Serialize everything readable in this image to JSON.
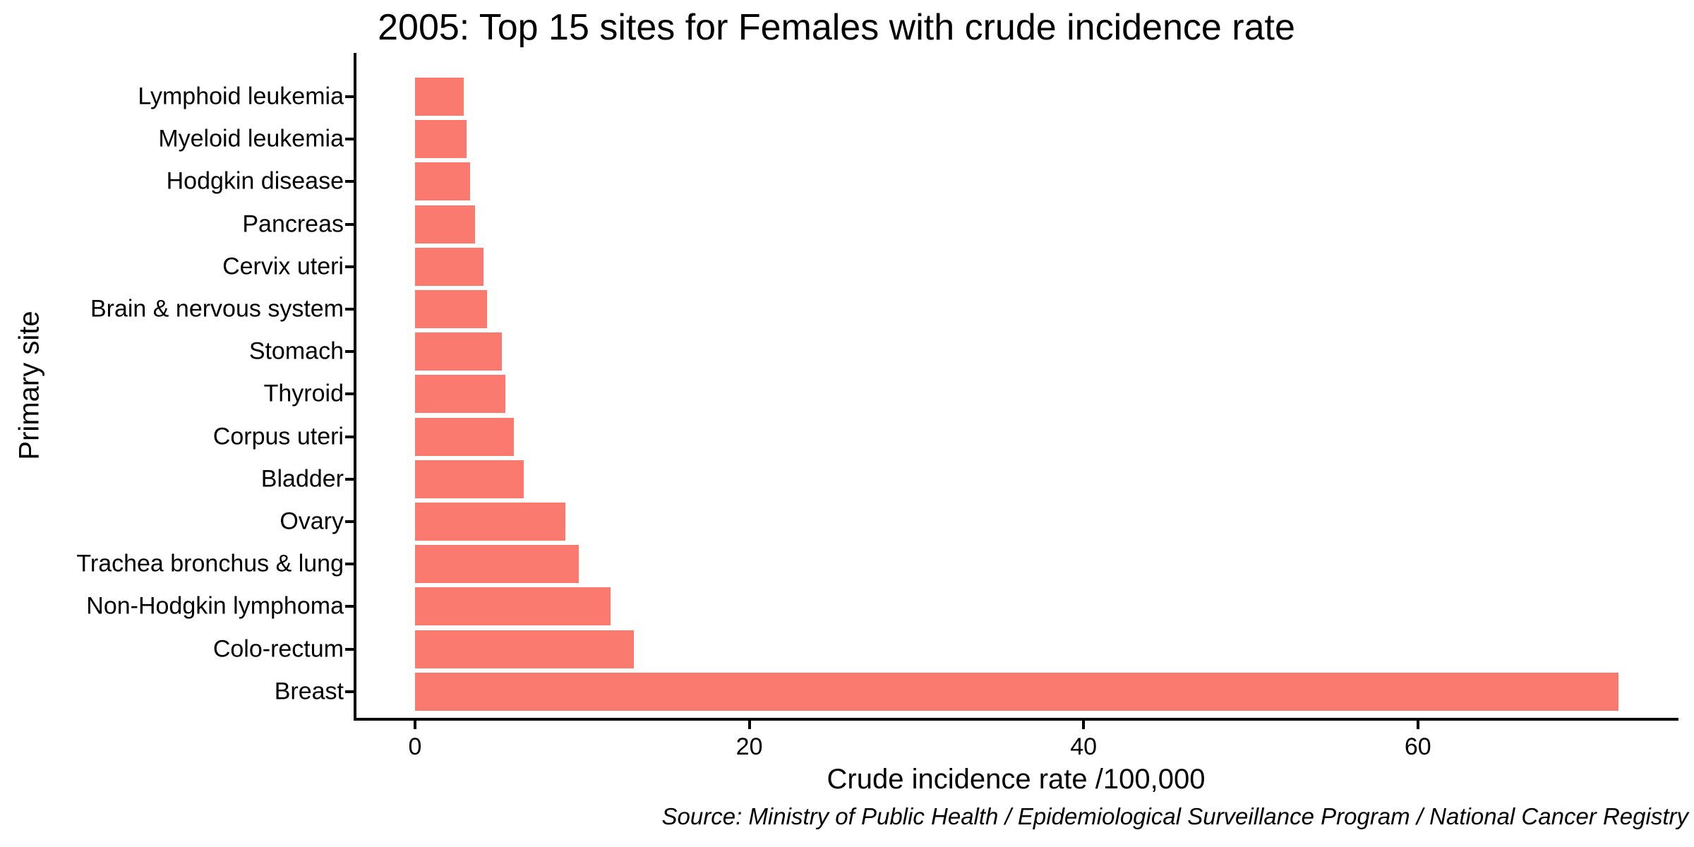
{
  "chart_data": {
    "type": "bar",
    "orientation": "horizontal",
    "title": "2005: Top 15 sites for Females with crude incidence rate",
    "xlabel": "Crude incidence rate /100,000",
    "ylabel": "Primary site",
    "source": "Source: Ministry of Public Health / Epidemiological Surveillance Program / National Cancer Registry",
    "categories": [
      "Lymphoid leukemia",
      "Myeloid leukemia",
      "Hodgkin disease",
      "Pancreas",
      "Cervix uteri",
      "Brain & nervous system",
      "Stomach",
      "Thyroid",
      "Corpus uteri",
      "Bladder",
      "Ovary",
      "Trachea bronchus & lung",
      "Non-Hodgkin lymphoma",
      "Colo-rectum",
      "Breast"
    ],
    "values": [
      2.9,
      3.1,
      3.3,
      3.6,
      4.1,
      4.3,
      5.2,
      5.4,
      5.9,
      6.5,
      9.0,
      9.8,
      11.7,
      13.1,
      72.0
    ],
    "category_order": "top to bottom as displayed",
    "x_ticks": [
      0,
      20,
      40,
      60
    ],
    "x_tick_labels": [
      "0",
      "20",
      "40",
      "60"
    ],
    "xlim": [
      0,
      72
    ],
    "grid": false,
    "legend": false,
    "bar_color": "#FA7A70",
    "axis_color": "#000000",
    "background_color": "#FFFFFF"
  }
}
